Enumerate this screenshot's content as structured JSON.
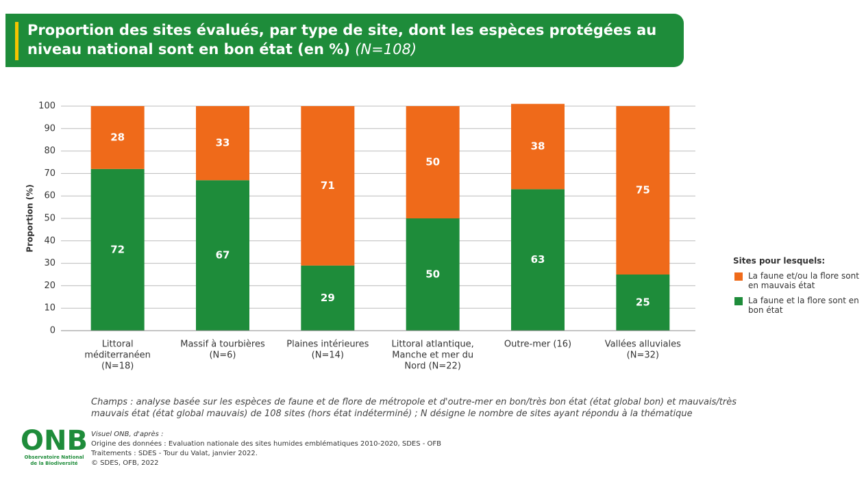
{
  "chart_data": {
    "type": "bar",
    "stacked": true,
    "title": "Proportion des sites évalués, par type de site, dont les espèces protégées au niveau national sont en bon état (en %)",
    "title_note": "(N=108)",
    "y_label": "Proportion (%)",
    "categories": [
      [
        "Littoral",
        "méditerranéen",
        "(N=18)"
      ],
      [
        "Massif à tourbières",
        "(N=6)"
      ],
      [
        "Plaines intérieures",
        "(N=14)"
      ],
      [
        "Littoral atlantique,",
        "Manche et mer du",
        "Nord (N=22)"
      ],
      [
        "Outre-mer (16)"
      ],
      [
        "Vallées alluviales",
        "(N=32)"
      ]
    ],
    "series": [
      {
        "name": "La faune et la flore sont en bon état",
        "color": "#1e8c3a",
        "values": [
          72,
          67,
          29,
          50,
          63,
          25
        ]
      },
      {
        "name": "La faune et/ou la flore sont en mauvais état",
        "color": "#ef6a1a",
        "values": [
          28,
          33,
          71,
          50,
          38,
          75
        ]
      }
    ],
    "legend_title": "Sites pour lesquels:",
    "ylim": [
      0,
      100
    ],
    "yticks": [
      0,
      10,
      20,
      30,
      40,
      50,
      60,
      70,
      80,
      90,
      100
    ],
    "grid": true
  },
  "footnote": [
    "Champs : analyse basée sur les espèces de faune et de flore de métropole et d'outre-mer en bon/très bon état (état global bon) et mauvais/très",
    "mauvais état (état global mauvais) de 108 sites  (hors état indéterminé)  ; N désigne le nombre de sites ayant répondu à la thématique"
  ],
  "source": [
    "Visuel ONB, d'après :",
    "Origine des données : Evaluation nationale des sites humides emblématiques 2010-2020, SDES - OFB",
    "Traitements : SDES - Tour du Valat, janvier 2022.",
    "©  SDES, OFB, 2022"
  ],
  "logo": {
    "name": "ONB",
    "lines": [
      "Observatoire National",
      "de la Biodiversité"
    ]
  }
}
